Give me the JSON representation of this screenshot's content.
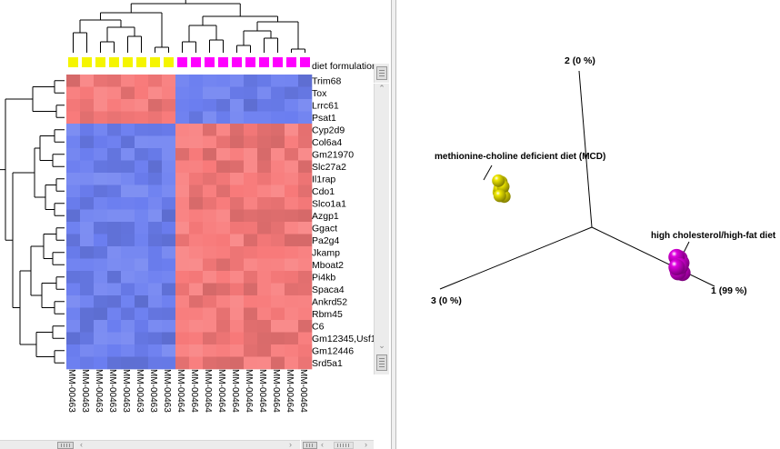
{
  "chart_data": [
    {
      "type": "heatmap",
      "column_annotation": {
        "label": "diet formulation",
        "colors": {
          "MM-00463": "#f5f500",
          "MM-00464": "#ff00ff"
        }
      },
      "columns": [
        "MM-00463",
        "MM-00463",
        "MM-00463",
        "MM-00463",
        "MM-00463",
        "MM-00463",
        "MM-00463",
        "MM-00463",
        "MM-00464",
        "MM-00464",
        "MM-00464",
        "MM-00464",
        "MM-00464",
        "MM-00464",
        "MM-00464",
        "MM-00464",
        "MM-00464",
        "MM-00464"
      ],
      "rows": [
        "Trim68",
        "Tox",
        "Lrrc61",
        "Psat1",
        "Cyp2d9",
        "Col6a4",
        "Gm21970",
        "Slc27a2",
        "Il1rap",
        "Cdo1",
        "Slco1a1",
        "Azgp1",
        "Ggact",
        "Pa2g4",
        "Jkamp",
        "Mboat2",
        "Pi4kb",
        "Spaca4",
        "Ankrd52",
        "Rbm45",
        "C6",
        "Gm12345,Usf1",
        "Gm12446",
        "Srd5a1"
      ],
      "row_groups": [
        {
          "rows": [
            0,
            1,
            2,
            3
          ],
          "first_group_high": true
        },
        {
          "rows": [
            4,
            5,
            6,
            7,
            8,
            9,
            10,
            11,
            12,
            13,
            14,
            15,
            16,
            17,
            18,
            19,
            20,
            21,
            22,
            23
          ],
          "first_group_high": false
        }
      ],
      "colors": {
        "high": "#f87a7a",
        "low": "#6b7ef0"
      }
    },
    {
      "type": "scatter",
      "axes": [
        {
          "label": "1 (99 %)"
        },
        {
          "label": "2 (0 %)"
        },
        {
          "label": "3 (0 %)"
        }
      ],
      "groups": [
        {
          "name": "methionine-choline deficient diet (MCD)",
          "color": "#f0e800",
          "point_count": 8
        },
        {
          "name": "high cholesterol/high-fat diet",
          "color": "#e000e0",
          "point_count": 10
        }
      ]
    }
  ]
}
